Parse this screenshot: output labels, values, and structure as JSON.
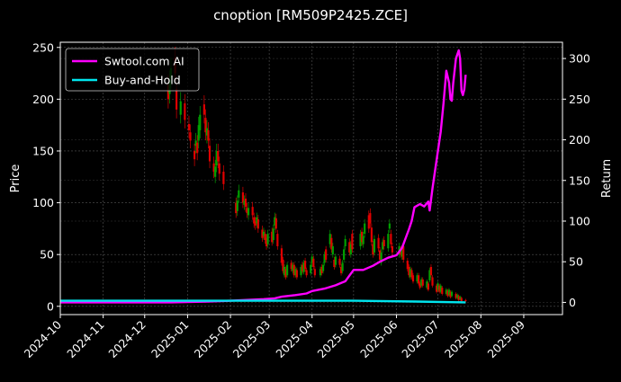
{
  "chart_data": {
    "type": "line",
    "title": "cnoption [RM509P2425.ZCE]",
    "ylabel_left": "Price",
    "ylabel_right": "Return",
    "xlim": [
      "2024-10-01",
      "2025-09-29"
    ],
    "ylim_left": [
      -8,
      255
    ],
    "ylim_right": [
      -15,
      320
    ],
    "x_ticks": [
      "2024-10",
      "2024-11",
      "2024-12",
      "2025-01",
      "2025-02",
      "2025-03",
      "2025-04",
      "2025-05",
      "2025-06",
      "2025-07",
      "2025-08",
      "2025-09"
    ],
    "y_ticks_left": [
      0,
      50,
      100,
      150,
      200,
      250
    ],
    "y_ticks_right": [
      0,
      50,
      100,
      150,
      200,
      250,
      300
    ],
    "grid": true,
    "legend_position": "top-left",
    "colors": {
      "background": "#000000",
      "up": "#00a000",
      "down": "#e00000",
      "strategy": "#ff00ff",
      "buyhold": "#00e5ee",
      "grid": "#555555"
    },
    "series": [
      {
        "name": "Swtool.com AI",
        "color": "#ff00ff",
        "points": [
          [
            "2024-10-01",
            0
          ],
          [
            "2024-12-20",
            0
          ],
          [
            "2025-01-15",
            1
          ],
          [
            "2025-02-01",
            2
          ],
          [
            "2025-02-25",
            4
          ],
          [
            "2025-03-05",
            5
          ],
          [
            "2025-03-10",
            7
          ],
          [
            "2025-03-20",
            9
          ],
          [
            "2025-03-28",
            11
          ],
          [
            "2025-04-01",
            14
          ],
          [
            "2025-04-10",
            17
          ],
          [
            "2025-04-18",
            21
          ],
          [
            "2025-04-25",
            26
          ],
          [
            "2025-04-28",
            33
          ],
          [
            "2025-05-01",
            40
          ],
          [
            "2025-05-08",
            40
          ],
          [
            "2025-05-15",
            45
          ],
          [
            "2025-05-20",
            50
          ],
          [
            "2025-05-26",
            55
          ],
          [
            "2025-06-01",
            58
          ],
          [
            "2025-06-05",
            67
          ],
          [
            "2025-06-10",
            90
          ],
          [
            "2025-06-12",
            100
          ],
          [
            "2025-06-14",
            117
          ],
          [
            "2025-06-18",
            121
          ],
          [
            "2025-06-21",
            118
          ],
          [
            "2025-06-24",
            124
          ],
          [
            "2025-06-25",
            113
          ],
          [
            "2025-06-27",
            140
          ],
          [
            "2025-06-30",
            175
          ],
          [
            "2025-07-03",
            210
          ],
          [
            "2025-07-05",
            245
          ],
          [
            "2025-07-07",
            285
          ],
          [
            "2025-07-09",
            270
          ],
          [
            "2025-07-10",
            250
          ],
          [
            "2025-07-11",
            248
          ],
          [
            "2025-07-12",
            270
          ],
          [
            "2025-07-14",
            300
          ],
          [
            "2025-07-16",
            310
          ],
          [
            "2025-07-17",
            300
          ],
          [
            "2025-07-18",
            260
          ],
          [
            "2025-07-19",
            255
          ],
          [
            "2025-07-20",
            262
          ],
          [
            "2025-07-21",
            280
          ]
        ]
      },
      {
        "name": "Buy-and-Hold",
        "color": "#00e5ee",
        "points": [
          [
            "2024-10-01",
            2
          ],
          [
            "2025-01-01",
            2
          ],
          [
            "2025-03-01",
            2
          ],
          [
            "2025-05-01",
            2
          ],
          [
            "2025-06-15",
            1
          ],
          [
            "2025-07-21",
            0
          ]
        ]
      }
    ],
    "price_candles": [
      [
        "2024-12-18",
        214,
        200
      ],
      [
        "2024-12-19",
        205,
        218
      ],
      [
        "2024-12-20",
        220,
        230
      ],
      [
        "2024-12-23",
        240,
        225
      ],
      [
        "2024-12-24",
        210,
        190
      ],
      [
        "2024-12-27",
        185,
        198
      ],
      [
        "2024-12-30",
        196,
        180
      ],
      [
        "2025-01-02",
        176,
        170
      ],
      [
        "2025-01-03",
        168,
        160
      ],
      [
        "2025-01-06",
        150,
        142
      ],
      [
        "2025-01-07",
        155,
        160
      ],
      [
        "2025-01-08",
        158,
        148
      ],
      [
        "2025-01-09",
        160,
        175
      ],
      [
        "2025-01-10",
        170,
        185
      ],
      [
        "2025-01-13",
        195,
        185
      ],
      [
        "2025-01-14",
        182,
        168
      ],
      [
        "2025-01-15",
        165,
        172
      ],
      [
        "2025-01-16",
        170,
        160
      ],
      [
        "2025-01-17",
        155,
        140
      ],
      [
        "2025-01-20",
        138,
        130
      ],
      [
        "2025-01-21",
        125,
        135
      ],
      [
        "2025-01-22",
        136,
        150
      ],
      [
        "2025-01-23",
        150,
        140
      ],
      [
        "2025-01-24",
        138,
        128
      ],
      [
        "2025-01-27",
        130,
        118
      ],
      [
        "2025-02-05",
        100,
        90
      ],
      [
        "2025-02-06",
        92,
        102
      ],
      [
        "2025-02-07",
        105,
        112
      ],
      [
        "2025-02-10",
        110,
        100
      ],
      [
        "2025-02-11",
        98,
        102
      ],
      [
        "2025-02-12",
        104,
        96
      ],
      [
        "2025-02-13",
        95,
        90
      ],
      [
        "2025-02-14",
        88,
        95
      ],
      [
        "2025-02-17",
        96,
        88
      ],
      [
        "2025-02-18",
        86,
        80
      ],
      [
        "2025-02-19",
        82,
        78
      ],
      [
        "2025-02-20",
        80,
        86
      ],
      [
        "2025-02-21",
        84,
        75
      ],
      [
        "2025-02-24",
        74,
        66
      ],
      [
        "2025-02-25",
        68,
        72
      ],
      [
        "2025-02-26",
        70,
        64
      ],
      [
        "2025-02-27",
        66,
        58
      ],
      [
        "2025-02-28",
        60,
        70
      ],
      [
        "2025-03-03",
        72,
        62
      ],
      [
        "2025-03-04",
        64,
        75
      ],
      [
        "2025-03-05",
        78,
        86
      ],
      [
        "2025-03-06",
        85,
        75
      ],
      [
        "2025-03-07",
        70,
        58
      ],
      [
        "2025-03-10",
        56,
        42
      ],
      [
        "2025-03-11",
        45,
        34
      ],
      [
        "2025-03-12",
        30,
        38
      ],
      [
        "2025-03-13",
        36,
        28
      ],
      [
        "2025-03-14",
        30,
        40
      ],
      [
        "2025-03-17",
        42,
        36
      ],
      [
        "2025-03-18",
        34,
        40
      ],
      [
        "2025-03-19",
        40,
        30
      ],
      [
        "2025-03-20",
        30,
        36
      ],
      [
        "2025-03-21",
        35,
        28
      ],
      [
        "2025-03-24",
        30,
        38
      ],
      [
        "2025-03-25",
        40,
        34
      ],
      [
        "2025-03-26",
        33,
        42
      ],
      [
        "2025-03-27",
        44,
        36
      ],
      [
        "2025-03-28",
        35,
        30
      ],
      [
        "2025-03-31",
        32,
        40
      ],
      [
        "2025-04-01",
        42,
        48
      ],
      [
        "2025-04-02",
        46,
        38
      ],
      [
        "2025-04-03",
        36,
        30
      ],
      [
        "2025-04-07",
        30,
        36
      ],
      [
        "2025-04-08",
        38,
        32
      ],
      [
        "2025-04-09",
        34,
        40
      ],
      [
        "2025-04-10",
        42,
        50
      ],
      [
        "2025-04-11",
        55,
        45
      ],
      [
        "2025-04-14",
        60,
        70
      ],
      [
        "2025-04-15",
        66,
        55
      ],
      [
        "2025-04-16",
        50,
        58
      ],
      [
        "2025-04-17",
        45,
        38
      ],
      [
        "2025-04-18",
        40,
        48
      ],
      [
        "2025-04-21",
        46,
        40
      ],
      [
        "2025-04-22",
        38,
        32
      ],
      [
        "2025-04-23",
        34,
        42
      ],
      [
        "2025-04-24",
        45,
        55
      ],
      [
        "2025-04-25",
        58,
        65
      ],
      [
        "2025-04-28",
        62,
        52
      ],
      [
        "2025-04-29",
        50,
        60
      ],
      [
        "2025-04-30",
        70,
        55
      ],
      [
        "2025-05-06",
        58,
        70
      ],
      [
        "2025-05-07",
        72,
        62
      ],
      [
        "2025-05-08",
        60,
        68
      ],
      [
        "2025-05-09",
        70,
        80
      ],
      [
        "2025-05-12",
        88,
        75
      ],
      [
        "2025-05-13",
        90,
        80
      ],
      [
        "2025-05-14",
        76,
        62
      ],
      [
        "2025-05-15",
        60,
        50
      ],
      [
        "2025-05-16",
        52,
        65
      ],
      [
        "2025-05-19",
        66,
        56
      ],
      [
        "2025-05-20",
        54,
        45
      ],
      [
        "2025-05-21",
        42,
        52
      ],
      [
        "2025-05-22",
        55,
        62
      ],
      [
        "2025-05-23",
        64,
        58
      ],
      [
        "2025-05-26",
        56,
        70
      ],
      [
        "2025-05-27",
        75,
        80
      ],
      [
        "2025-05-28",
        70,
        60
      ],
      [
        "2025-05-29",
        58,
        52
      ],
      [
        "2025-06-03",
        50,
        58
      ],
      [
        "2025-06-04",
        55,
        50
      ],
      [
        "2025-06-05",
        48,
        56
      ],
      [
        "2025-06-06",
        58,
        45
      ],
      [
        "2025-06-09",
        44,
        36
      ],
      [
        "2025-06-10",
        38,
        30
      ],
      [
        "2025-06-11",
        28,
        36
      ],
      [
        "2025-06-12",
        35,
        28
      ],
      [
        "2025-06-13",
        30,
        24
      ],
      [
        "2025-06-16",
        24,
        30
      ],
      [
        "2025-06-17",
        30,
        22
      ],
      [
        "2025-06-18",
        22,
        18
      ],
      [
        "2025-06-19",
        20,
        26
      ],
      [
        "2025-06-20",
        26,
        20
      ],
      [
        "2025-06-23",
        18,
        24
      ],
      [
        "2025-06-24",
        22,
        16
      ],
      [
        "2025-06-25",
        25,
        35
      ],
      [
        "2025-06-26",
        38,
        30
      ],
      [
        "2025-06-27",
        28,
        20
      ],
      [
        "2025-06-30",
        20,
        14
      ],
      [
        "2025-07-01",
        16,
        22
      ],
      [
        "2025-07-02",
        20,
        14
      ],
      [
        "2025-07-03",
        14,
        20
      ],
      [
        "2025-07-04",
        18,
        12
      ],
      [
        "2025-07-07",
        12,
        16
      ],
      [
        "2025-07-08",
        15,
        10
      ],
      [
        "2025-07-09",
        11,
        16
      ],
      [
        "2025-07-10",
        14,
        9
      ],
      [
        "2025-07-11",
        10,
        14
      ],
      [
        "2025-07-14",
        12,
        8
      ],
      [
        "2025-07-15",
        8,
        11
      ],
      [
        "2025-07-16",
        10,
        6
      ],
      [
        "2025-07-17",
        7,
        9
      ],
      [
        "2025-07-18",
        8,
        5
      ],
      [
        "2025-07-21",
        6,
        5
      ]
    ]
  }
}
